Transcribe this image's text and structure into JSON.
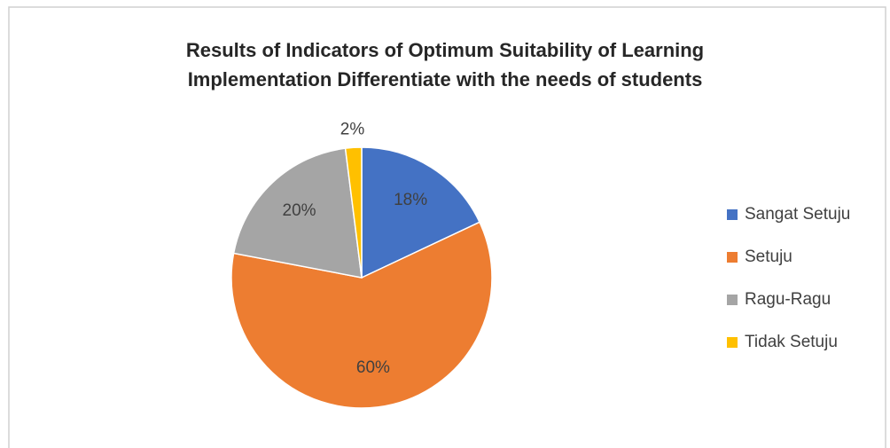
{
  "chart_data": {
    "type": "pie",
    "title": [
      "Results of Indicators of Optimum Suitability of Learning",
      "Implementation Differentiate with the needs of students"
    ],
    "categories": [
      "Sangat Setuju",
      "Setuju",
      "Ragu-Ragu",
      "Tidak Setuju"
    ],
    "values": [
      18,
      60,
      20,
      2
    ],
    "value_labels": [
      "18%",
      "60%",
      "20%",
      "2%"
    ],
    "colors": [
      "#4472c4",
      "#ed7d31",
      "#a5a5a5",
      "#ffc000"
    ],
    "legend": "right"
  }
}
